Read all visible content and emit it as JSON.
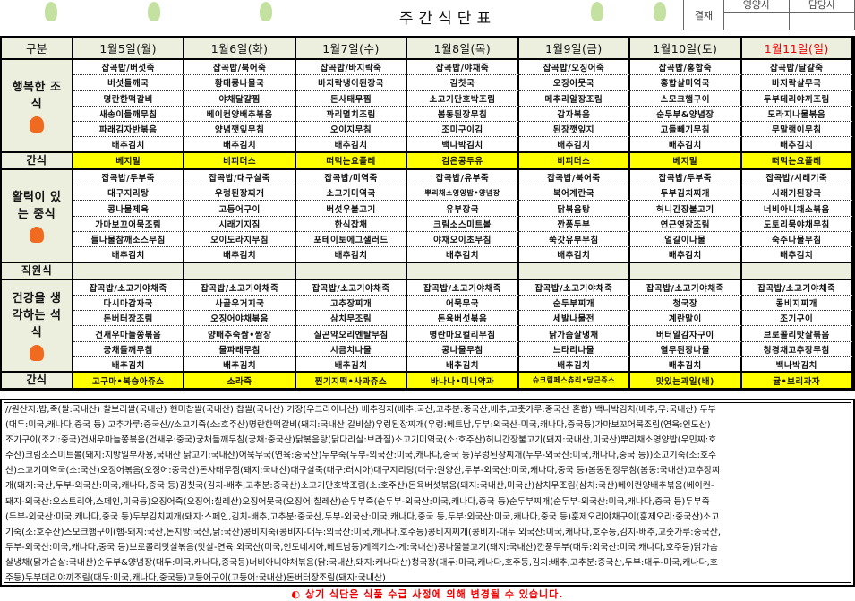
{
  "title": "주간식단표",
  "approval": {
    "label": "결재",
    "roles": [
      "영양사",
      "담당사"
    ]
  },
  "header": {
    "category": "구분",
    "days": [
      "1월5일(월)",
      "1월6일(화)",
      "1월7일(수)",
      "1월8일(목)",
      "1월9일(금)",
      "1월10일(토)",
      "1월11일(일)"
    ],
    "sunday_color": "#ff0000"
  },
  "sections": [
    {
      "label": "행복한 조식",
      "type": "meal",
      "rows": [
        [
          "잡곡밥/버섯죽",
          "잡곡밥/북어죽",
          "잡곡밥/바지락죽",
          "잡곡밥/야채죽",
          "잡곡밥/오징어죽",
          "잡곡밥/홍합죽",
          "잡곡밥/달걀죽"
        ],
        [
          "버섯들깨국",
          "황태콩나물국",
          "바지락냉이된장국",
          "김칫국",
          "오징어뭇국",
          "홍합살미역국",
          "바지락살무국"
        ],
        [
          "명란한떡갈비",
          "야채달걀찜",
          "돈사태무찜",
          "소고기단호박조림",
          "메추리알장조림",
          "스모크햄구이",
          "두부데리야끼조림"
        ],
        [
          "새송이들깨무침",
          "베이컨양배추볶음",
          "꽈리멸치조림",
          "봄동된장무침",
          "감자볶음",
          "순두부&양념장",
          "도라지나물볶음"
        ],
        [
          "파래김자반볶음",
          "양념깻잎무침",
          "오이지무침",
          "조미구이김",
          "된장깻잎지",
          "고들빼기무침",
          "무말랭이무침"
        ],
        [
          "배추김치",
          "배추김치",
          "배추김치",
          "백나박김치",
          "배추김치",
          "배추김치",
          "배추김치"
        ]
      ]
    },
    {
      "label": "간식",
      "type": "snack",
      "rows": [
        [
          "베지밀",
          "비피더스",
          "떠먹는요플레",
          "검은콩두유",
          "비피더스",
          "베지밀",
          "떠먹는요플레"
        ]
      ]
    },
    {
      "label": "활력이 있는 중식",
      "type": "meal",
      "rows": [
        [
          "잡곡밥/두부죽",
          "잡곡밥/대구살죽",
          "잡곡밥/미역죽",
          "잡곡밥/유부죽",
          "잡곡밥/북어죽",
          "잡곡밥/두부죽",
          "잡곡밥/시래기죽"
        ],
        [
          "대구지리탕",
          "우렁된장찌개",
          "소고기미역국",
          "뿌리채소영양밥•양념장",
          "북어계란국",
          "두부김치찌개",
          "시래기된장국"
        ],
        [
          "콩나물제육",
          "고등어구이",
          "버섯우불고기",
          "유부장국",
          "닭볶음탕",
          "허니간장불고기",
          "너비아니채소볶음"
        ],
        [
          "가마보꼬어묵조림",
          "시래기지짐",
          "한식잡채",
          "크림소스미트볼",
          "깐풍두부",
          "연근엿장조림",
          "도토리묵야채무침"
        ],
        [
          "들나물참깨소스무침",
          "오이도라지무침",
          "포테이토에그샐러드",
          "야채오이초무침",
          "쑥갓유부무침",
          "얼갈이나물",
          "숙주나물무침"
        ],
        [
          "배추김치",
          "배추김치",
          "배추김치",
          "배추김치",
          "배추김치",
          "배추김치",
          "배추김치"
        ]
      ]
    },
    {
      "label": "직원식",
      "type": "staff",
      "rows": [
        [
          "",
          "",
          "",
          "",
          "",
          "",
          ""
        ]
      ]
    },
    {
      "label": "건강을 생각하는 석식",
      "type": "meal",
      "rows": [
        [
          "잡곡밥/소고기야채죽",
          "잡곡밥/소고기야채죽",
          "잡곡밥/소고기야채죽",
          "잡곡밥/소고기야채죽",
          "잡곡밥/소고기야채죽",
          "잡곡밥/소고기야채죽",
          "잡곡밥/소고기야채죽"
        ],
        [
          "다시마감자국",
          "사골우거지국",
          "고추장찌개",
          "어묵무국",
          "순두부찌개",
          "청국장",
          "콩비지찌개"
        ],
        [
          "돈버터장조림",
          "오징어야채볶음",
          "삼치무조림",
          "돈육버섯볶음",
          "세발나물전",
          "계란말이",
          "조기구이"
        ],
        [
          "건새우마늘쫑볶음",
          "양배추숙쌈•쌈장",
          "실곤약오리엔탈무침",
          "명란마요컬리무침",
          "닭가슴살냉채",
          "버터알감자구이",
          "브로콜리맛살볶음"
        ],
        [
          "궁채들깨무침",
          "물파래무침",
          "시금치나물",
          "콩나물무침",
          "느타리나물",
          "열무된장나물",
          "청경채고추장무침"
        ],
        [
          "배추김치",
          "배추김치",
          "배추김치",
          "배추김치",
          "배추김치",
          "배추김치",
          "백나박김치"
        ]
      ]
    },
    {
      "label": "간식",
      "type": "snack",
      "rows": [
        [
          "고구마•복숭아쥬스",
          "소라죽",
          "찐기지떡•사과쥬스",
          "바나나•미니약과",
          "슈크림페스츄리•당근쥬스",
          "맛있는과일(배)",
          "귤•보리과자"
        ]
      ]
    }
  ],
  "origin_lines": [
    "//원산지:밥,죽(쌀:국내산) 찰보리쌀(국내산) 현미찹쌀(국내산) 찹쌀(국내산) 기장(우크라이나산) 배추김치(배추:국산,고추분:중국산,배추,고춧가루:중국산 혼합) 백나박김치(배추,무:국내산) 두부",
    "(대두:미국,캐나다,중국 등) 고추가루:중국산//소고기죽(소:호주산)명란한떡갈비(돼지:국내산 갈비살)우렁된장찌개(우렁:베트남,두부:외국산-미국,캐나다,중국등)가마보꼬어묵조림(연육:인도산)",
    "조기구이(조기:중국)건새우마늘쫑볶음(건새우:중국)궁채들깨무침(궁채:중국산)닭볶음탕(닭다리살:브라질)소고기미역국(소:호주산)허니간장불고기(돼지:국내산,미국산)뿌리채소영양밥(우민찌:호",
    "주산)크림소스미트볼(돼지:지방일부사용,국내산 닭고기:국내산)어묵무국(연육:중국산)두부죽(두부-외국산:미국,캐나다,중국 등)우렁된장찌개(두부-외국산:미국,캐나다,중국 등))소고기죽(소:호주",
    "산)소고기미역국(소:국산)오징어볶음(오징어:중국산)돈사태무찜(돼지:국내산)대구살죽(대구:러시아)대구지리탕(대구:원양산,두부-외국산:미국,캐나다,중국 등)봄동된장무침(봄동:국내산)고추장찌",
    "개(돼지:국산,두부-외국산:미국,캐나다,중국 등)김칫국(김치-배추,고추분:중국산)소고기단호박조림(소:호주산)돈육버섯볶음(돼지:국내산,미국산)삼치무조림(삼치:국산)베이컨양배추볶음(베이컨-",
    "돼지-외국산:오스트리아,스페인,미국등)오징어죽(오징어:칠레산)오징어뭇국(오징어:칠레산)순두부죽(순두부-외국산:미국,캐나다,중국 등)순두부찌개(순두부-외국산:미국,캐나다,중국 등)두부죽",
    "(두부-외국산:미국,캐나다,중국 등)두부김치찌개(돼지:스페인,김치-배추,고추분:중국산,두부-외국산:미국,캐나다,중국 등,두부:외국산:미국,캐나다,중국 등)훈제오리야채구이(훈제오리:중국산)소고",
    "기죽(소:호주산)스모크햄구이(햄-돼지:국산,돈지방:국산,닭:국산)콩비지죽(콩비지-대두:외국산:미국,캐나다,호주등)콩비지찌개(콩비지-대두:외국산:미국,캐나다,호주등,김치-배추,고춧가루:중국산,",
    "두부-외국산:미국,캐나다,중국 등)브로콜리맛살볶음(맛살-연육:외국산(미국,인도네시아,베트남등)게액기스-게:국내산)콩나물불고기(돼지:국내산)깐풍두부(대두:외국산:미국,캐나다,호주등)닭가슴",
    "살냉채(닭가슴살:국내산)순두부&양념장(대두:미국,캐나다,중국등)너비아니야채볶음(닭:국내산,돼지:캐나다산)청국장(대두:미국,캐나다,호주등,김치:배추,고추분:중국산,두부:대두-미국,캐나다,호",
    "주등)두부데리야끼조림(대두:미국,캐나다,중국등)고등어구이(고등어:국내산)돈버터장조림(돼지:국내산)"
  ],
  "notice": "◐ 상기 식단은 식품 수급 사정에 의해 변경될 수 있습니다.",
  "colors": {
    "snack_bg": "#ffff00",
    "category_bg": "#eceede",
    "notice": "#ff0000"
  }
}
